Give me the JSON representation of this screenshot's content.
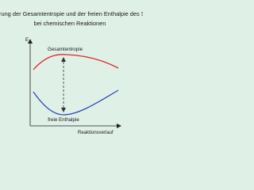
{
  "title": {
    "line1": "rung der Gesamtentropie und der freien Enthalpie des Syst",
    "line2": "bei chemischen Reaktionen"
  },
  "axes": {
    "y_label": "E",
    "x_label": "Reaktionsverlauf"
  },
  "curves": [
    {
      "label": "Gesamtentropie"
    },
    {
      "label": "freie Enthalpie"
    }
  ]
}
